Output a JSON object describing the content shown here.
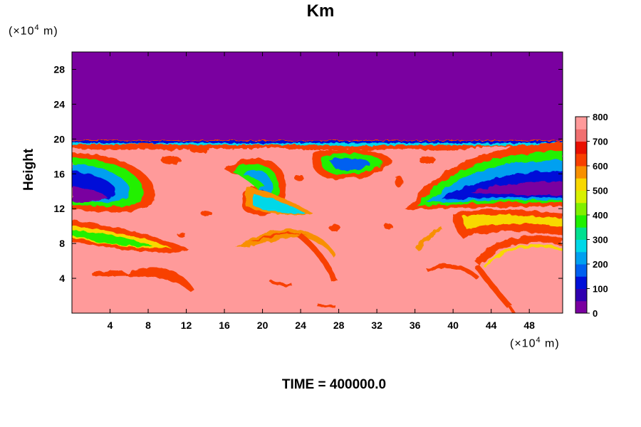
{
  "chart_data": {
    "type": "heatmap",
    "title": "Km",
    "ylabel": "Height",
    "y_unit": {
      "prefix": "(×10",
      "exp": "4",
      "suffix": " m)"
    },
    "x_unit": {
      "prefix": "(×10",
      "exp": "4",
      "suffix": " m)"
    },
    "x_ticks": [
      4,
      8,
      12,
      16,
      20,
      24,
      28,
      32,
      36,
      40,
      44,
      48
    ],
    "y_ticks": [
      4,
      8,
      12,
      16,
      20,
      24,
      28
    ],
    "xlim": [
      0,
      51.5
    ],
    "ylim": [
      0,
      30
    ],
    "colorbar": {
      "ticks": [
        0,
        100,
        200,
        300,
        400,
        500,
        600,
        700,
        800
      ],
      "range": [
        0,
        800
      ],
      "colors": [
        "#7a00a0",
        "#3000b0",
        "#0010d8",
        "#0060f0",
        "#00a0f0",
        "#00d8e8",
        "#00e090",
        "#20f000",
        "#80f000",
        "#d8f000",
        "#f8d800",
        "#f89000",
        "#f84000",
        "#e81000",
        "#f07070",
        "#ff9a9a"
      ]
    },
    "field_summary": [
      {
        "region": "y > 20",
        "value": 0
      },
      {
        "region": "y < 20 (background)",
        "value": 800
      },
      {
        "region": "banded features near y 12-18 at x 0-8",
        "value_range": [
          0,
          500
        ]
      },
      {
        "region": "banded features near y 12-18 at x 36-51",
        "value_range": [
          0,
          500
        ]
      },
      {
        "region": "arc features y 2-11",
        "value_range": [
          600,
          800
        ]
      }
    ]
  },
  "footer": {
    "time_text": "TIME = 400000.0"
  }
}
